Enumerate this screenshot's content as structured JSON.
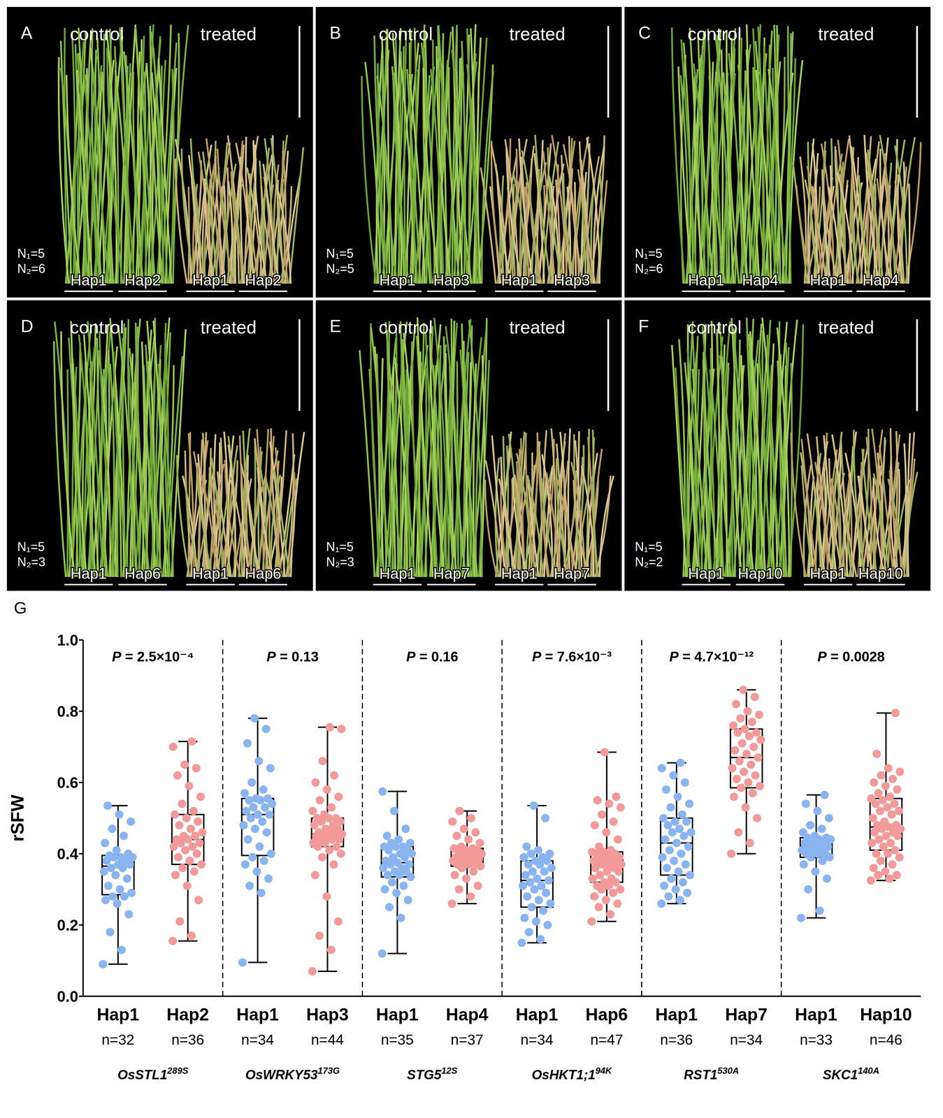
{
  "photo_panels": [
    {
      "letter": "A",
      "left_title": "control",
      "right_title": "treated",
      "counts": [
        "N₁=5",
        "N₂=6"
      ],
      "labels": [
        "Hap1",
        "Hap2",
        "Hap1",
        "Hap2"
      ]
    },
    {
      "letter": "B",
      "left_title": "control",
      "right_title": "treated",
      "counts": [
        "N₁=5",
        "N₂=5"
      ],
      "labels": [
        "Hap1",
        "Hap3",
        "Hap1",
        "Hap3"
      ]
    },
    {
      "letter": "C",
      "left_title": "control",
      "right_title": "treated",
      "counts": [
        "N₁=5",
        "N₂=6"
      ],
      "labels": [
        "Hap1",
        "Hap4",
        "Hap1",
        "Hap4"
      ]
    },
    {
      "letter": "D",
      "left_title": "control",
      "right_title": "treated",
      "counts": [
        "N₁=5",
        "N₂=3"
      ],
      "labels": [
        "Hap1",
        "Hap6",
        "Hap1",
        "Hap6"
      ]
    },
    {
      "letter": "E",
      "left_title": "control",
      "right_title": "treated",
      "counts": [
        "N₁=5",
        "N₂=3"
      ],
      "labels": [
        "Hap1",
        "Hap7",
        "Hap1",
        "Hap7"
      ]
    },
    {
      "letter": "F",
      "left_title": "control",
      "right_title": "treated",
      "counts": [
        "N₁=5",
        "N₂=2"
      ],
      "labels": [
        "Hap1",
        "Hap10",
        "Hap1",
        "Hap10"
      ]
    }
  ],
  "chart_data": {
    "type": "box",
    "panel_letter": "G",
    "ylabel": "rSFW",
    "ylim": [
      0,
      1
    ],
    "yticks": [
      {
        "value": 0,
        "label": "0.0"
      },
      0.2,
      0.4,
      0.6,
      0.8,
      {
        "value": 1,
        "label": "1.0"
      }
    ],
    "categories": [
      "Hap1",
      "Hap2",
      "Hap1",
      "Hap3",
      "Hap1",
      "Hap4",
      "Hap1",
      "Hap6",
      "Hap1",
      "Hap7",
      "Hap1",
      "Hap10"
    ],
    "groups": [
      {
        "gene": "OsSTL1",
        "allele": "289S",
        "p_label": "P = 2.5×10⁻⁴",
        "boxes": [
          {
            "n_label": "n=32",
            "color": "#8ab4f0",
            "stats": {
              "min": 0.09,
              "q1": 0.285,
              "median": 0.365,
              "q3": 0.395,
              "max": 0.535
            },
            "points": [
              0.09,
              0.13,
              0.18,
              0.23,
              0.26,
              0.27,
              0.28,
              0.28,
              0.29,
              0.3,
              0.31,
              0.33,
              0.34,
              0.35,
              0.36,
              0.36,
              0.37,
              0.37,
              0.38,
              0.38,
              0.39,
              0.39,
              0.39,
              0.395,
              0.4,
              0.41,
              0.43,
              0.45,
              0.47,
              0.49,
              0.51,
              0.535
            ]
          },
          {
            "n_label": "n=36",
            "color": "#f29a9a",
            "stats": {
              "min": 0.155,
              "q1": 0.37,
              "median": 0.44,
              "q3": 0.51,
              "max": 0.715
            },
            "points": [
              0.155,
              0.17,
              0.21,
              0.27,
              0.31,
              0.34,
              0.35,
              0.36,
              0.37,
              0.38,
              0.39,
              0.4,
              0.41,
              0.42,
              0.42,
              0.43,
              0.43,
              0.44,
              0.44,
              0.45,
              0.45,
              0.46,
              0.47,
              0.48,
              0.49,
              0.5,
              0.51,
              0.52,
              0.54,
              0.56,
              0.59,
              0.62,
              0.64,
              0.65,
              0.7,
              0.715
            ]
          }
        ]
      },
      {
        "gene": "OsWRKY53",
        "allele": "173G",
        "p_label": "P = 0.13",
        "boxes": [
          {
            "n_label": "n=34",
            "color": "#8ab4f0",
            "stats": {
              "min": 0.095,
              "q1": 0.395,
              "median": 0.51,
              "q3": 0.555,
              "max": 0.78
            },
            "points": [
              0.095,
              0.29,
              0.31,
              0.33,
              0.35,
              0.37,
              0.38,
              0.39,
              0.4,
              0.42,
              0.44,
              0.46,
              0.47,
              0.48,
              0.49,
              0.5,
              0.51,
              0.51,
              0.52,
              0.53,
              0.53,
              0.54,
              0.55,
              0.55,
              0.555,
              0.555,
              0.57,
              0.58,
              0.6,
              0.64,
              0.66,
              0.71,
              0.75,
              0.78
            ]
          },
          {
            "n_label": "n=44",
            "color": "#f29a9a",
            "stats": {
              "min": 0.07,
              "q1": 0.42,
              "median": 0.455,
              "q3": 0.5,
              "max": 0.755
            },
            "points": [
              0.07,
              0.13,
              0.17,
              0.21,
              0.28,
              0.34,
              0.37,
              0.39,
              0.4,
              0.41,
              0.42,
              0.42,
              0.43,
              0.43,
              0.44,
              0.44,
              0.44,
              0.45,
              0.45,
              0.45,
              0.45,
              0.455,
              0.46,
              0.46,
              0.47,
              0.47,
              0.48,
              0.48,
              0.49,
              0.49,
              0.5,
              0.5,
              0.5,
              0.51,
              0.52,
              0.53,
              0.55,
              0.56,
              0.58,
              0.6,
              0.62,
              0.66,
              0.75,
              0.755
            ]
          }
        ]
      },
      {
        "gene": "STG5",
        "allele": "12S",
        "p_label": "P = 0.16",
        "boxes": [
          {
            "n_label": "n=35",
            "color": "#8ab4f0",
            "stats": {
              "min": 0.12,
              "q1": 0.335,
              "median": 0.375,
              "q3": 0.42,
              "max": 0.575
            },
            "points": [
              0.12,
              0.22,
              0.25,
              0.27,
              0.29,
              0.3,
              0.31,
              0.32,
              0.335,
              0.34,
              0.34,
              0.35,
              0.35,
              0.36,
              0.36,
              0.37,
              0.37,
              0.375,
              0.38,
              0.39,
              0.39,
              0.4,
              0.4,
              0.41,
              0.41,
              0.42,
              0.42,
              0.42,
              0.43,
              0.43,
              0.44,
              0.45,
              0.47,
              0.52,
              0.575
            ]
          },
          {
            "n_label": "n=37",
            "color": "#f29a9a",
            "stats": {
              "min": 0.26,
              "q1": 0.365,
              "median": 0.385,
              "q3": 0.415,
              "max": 0.52
            },
            "points": [
              0.26,
              0.28,
              0.3,
              0.31,
              0.33,
              0.34,
              0.35,
              0.36,
              0.365,
              0.37,
              0.37,
              0.37,
              0.375,
              0.38,
              0.38,
              0.38,
              0.385,
              0.385,
              0.39,
              0.39,
              0.395,
              0.4,
              0.4,
              0.4,
              0.41,
              0.41,
              0.415,
              0.415,
              0.42,
              0.43,
              0.44,
              0.45,
              0.46,
              0.47,
              0.49,
              0.5,
              0.52
            ]
          }
        ]
      },
      {
        "gene": "OsHKT1;1",
        "allele": "94K",
        "p_label": "P = 7.6×10⁻³",
        "boxes": [
          {
            "n_label": "n=34",
            "color": "#8ab4f0",
            "stats": {
              "min": 0.15,
              "q1": 0.25,
              "median": 0.325,
              "q3": 0.38,
              "max": 0.535
            },
            "points": [
              0.15,
              0.16,
              0.18,
              0.2,
              0.21,
              0.22,
              0.24,
              0.25,
              0.26,
              0.27,
              0.28,
              0.29,
              0.3,
              0.31,
              0.31,
              0.32,
              0.325,
              0.33,
              0.34,
              0.35,
              0.35,
              0.36,
              0.37,
              0.37,
              0.38,
              0.38,
              0.39,
              0.39,
              0.4,
              0.4,
              0.41,
              0.42,
              0.5,
              0.535
            ]
          },
          {
            "n_label": "n=47",
            "color": "#f29a9a",
            "stats": {
              "min": 0.21,
              "q1": 0.32,
              "median": 0.375,
              "q3": 0.405,
              "max": 0.685
            },
            "points": [
              0.21,
              0.23,
              0.25,
              0.26,
              0.27,
              0.28,
              0.29,
              0.3,
              0.3,
              0.31,
              0.31,
              0.32,
              0.32,
              0.33,
              0.33,
              0.34,
              0.35,
              0.35,
              0.36,
              0.36,
              0.37,
              0.37,
              0.37,
              0.375,
              0.38,
              0.38,
              0.38,
              0.39,
              0.39,
              0.39,
              0.4,
              0.4,
              0.4,
              0.405,
              0.405,
              0.41,
              0.42,
              0.44,
              0.46,
              0.48,
              0.49,
              0.51,
              0.53,
              0.54,
              0.55,
              0.56,
              0.685
            ]
          }
        ]
      },
      {
        "gene": "RST1",
        "allele": "530A",
        "p_label": "P = 4.7×10⁻¹²",
        "boxes": [
          {
            "n_label": "n=36",
            "color": "#8ab4f0",
            "stats": {
              "min": 0.26,
              "q1": 0.34,
              "median": 0.43,
              "q3": 0.5,
              "max": 0.655
            },
            "points": [
              0.26,
              0.27,
              0.28,
              0.29,
              0.3,
              0.31,
              0.32,
              0.33,
              0.34,
              0.35,
              0.36,
              0.37,
              0.38,
              0.39,
              0.4,
              0.41,
              0.42,
              0.43,
              0.44,
              0.45,
              0.46,
              0.46,
              0.47,
              0.48,
              0.49,
              0.49,
              0.5,
              0.51,
              0.53,
              0.54,
              0.56,
              0.58,
              0.6,
              0.62,
              0.64,
              0.655
            ]
          },
          {
            "n_label": "n=34",
            "color": "#f29a9a",
            "stats": {
              "min": 0.4,
              "q1": 0.585,
              "median": 0.67,
              "q3": 0.75,
              "max": 0.86
            },
            "points": [
              0.4,
              0.43,
              0.46,
              0.5,
              0.53,
              0.56,
              0.57,
              0.585,
              0.59,
              0.6,
              0.61,
              0.62,
              0.63,
              0.64,
              0.65,
              0.66,
              0.67,
              0.68,
              0.69,
              0.7,
              0.71,
              0.72,
              0.73,
              0.74,
              0.74,
              0.75,
              0.76,
              0.77,
              0.78,
              0.79,
              0.8,
              0.82,
              0.84,
              0.86
            ]
          }
        ]
      },
      {
        "gene": "SKC1",
        "allele": "140A",
        "p_label": "P = 0.0028",
        "boxes": [
          {
            "n_label": "n=33",
            "color": "#8ab4f0",
            "stats": {
              "min": 0.22,
              "q1": 0.39,
              "median": 0.42,
              "q3": 0.445,
              "max": 0.565
            },
            "points": [
              0.22,
              0.24,
              0.3,
              0.33,
              0.35,
              0.37,
              0.38,
              0.39,
              0.39,
              0.4,
              0.4,
              0.4,
              0.41,
              0.41,
              0.41,
              0.42,
              0.42,
              0.42,
              0.43,
              0.43,
              0.43,
              0.44,
              0.44,
              0.445,
              0.445,
              0.45,
              0.46,
              0.47,
              0.48,
              0.5,
              0.52,
              0.54,
              0.565
            ]
          },
          {
            "n_label": "n=46",
            "color": "#f29a9a",
            "stats": {
              "min": 0.325,
              "q1": 0.41,
              "median": 0.475,
              "q3": 0.555,
              "max": 0.795
            },
            "points": [
              0.325,
              0.33,
              0.34,
              0.34,
              0.35,
              0.36,
              0.37,
              0.38,
              0.39,
              0.4,
              0.4,
              0.41,
              0.42,
              0.43,
              0.43,
              0.44,
              0.45,
              0.45,
              0.46,
              0.46,
              0.47,
              0.47,
              0.475,
              0.48,
              0.48,
              0.49,
              0.5,
              0.51,
              0.52,
              0.52,
              0.53,
              0.54,
              0.54,
              0.55,
              0.555,
              0.56,
              0.57,
              0.58,
              0.59,
              0.6,
              0.61,
              0.62,
              0.63,
              0.64,
              0.68,
              0.795
            ]
          }
        ]
      }
    ]
  }
}
